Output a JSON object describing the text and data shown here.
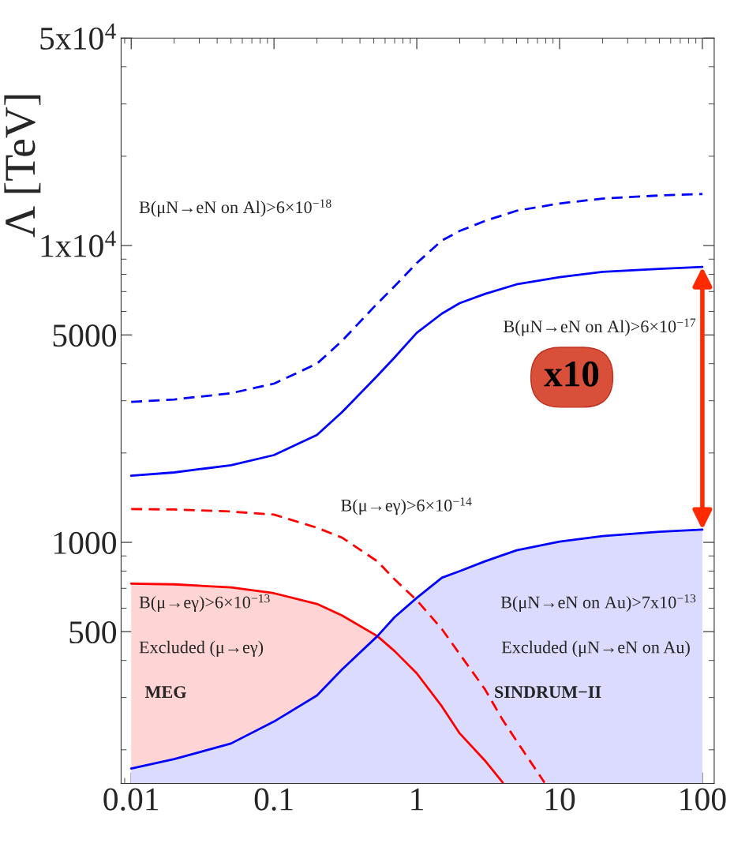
{
  "chart_data": {
    "type": "line",
    "ylabel": "Λ [TeV]",
    "log": "xy",
    "grid": false,
    "legend": false,
    "xlim": [
      0.0085,
      121
    ],
    "xticks": [
      0.01,
      0.1,
      1,
      10,
      100
    ],
    "ylim": [
      154,
      50000
    ],
    "yticks": [
      {
        "value": 500,
        "label": "500"
      },
      {
        "value": 1000,
        "label": "1000"
      },
      {
        "value": 5000,
        "label": "5000"
      },
      {
        "value": 10000,
        "label": "1x10$^{4}$"
      },
      {
        "value": 50000,
        "label": "5x10$^{4}$"
      }
    ],
    "series": [
      {
        "type": "area",
        "color": "#ff0000",
        "line_style": "solid",
        "x": [
          0.01,
          0.02,
          0.05,
          0.1,
          0.2,
          0.3,
          0.53,
          0.7,
          1,
          1.5,
          2,
          3,
          4.0
        ],
        "values": [
          726,
          722,
          705,
          674,
          620,
          567,
          483,
          430,
          362,
          280,
          227,
          184,
          155
        ]
      },
      {
        "type": "area",
        "color": "#0000ff",
        "line_style": "solid",
        "x": [
          0.01,
          0.02,
          0.05,
          0.1,
          0.2,
          0.3,
          0.53,
          0.7,
          1,
          1.5,
          2,
          3,
          5,
          10,
          20,
          50,
          100
        ],
        "values": [
          173,
          186,
          210,
          249,
          305,
          373,
          483,
          560,
          650,
          760,
          800,
          863,
          940,
          1006,
          1050,
          1085,
          1104
        ]
      },
      {
        "color": "#ff0000",
        "line_style": "dashed",
        "x": [
          0.01,
          0.02,
          0.05,
          0.1,
          0.2,
          0.3,
          0.53,
          0.7,
          1,
          1.5,
          2,
          3,
          4,
          5.5,
          7.85
        ],
        "values": [
          1295,
          1290,
          1270,
          1240,
          1120,
          1037,
          863,
          750,
          638,
          510,
          420,
          320,
          252,
          200,
          155
        ]
      },
      {
        "color": "#0000ff",
        "line_style": "solid",
        "x": [
          0.01,
          0.02,
          0.05,
          0.1,
          0.2,
          0.3,
          0.53,
          0.7,
          1,
          1.5,
          2,
          3,
          5,
          10,
          20,
          50,
          100
        ],
        "values": [
          1678,
          1720,
          1820,
          1968,
          2300,
          2747,
          3642,
          4200,
          5080,
          5900,
          6400,
          6870,
          7400,
          7820,
          8150,
          8350,
          8470
        ]
      },
      {
        "color": "#0000ff",
        "line_style": "dashed",
        "x": [
          0.01,
          0.02,
          0.05,
          0.1,
          0.2,
          0.3,
          0.5,
          0.7,
          1,
          1.5,
          2,
          3,
          5,
          10,
          20,
          50,
          100
        ],
        "values": [
          2973,
          3030,
          3180,
          3426,
          4000,
          4775,
          6200,
          7300,
          8730,
          10400,
          11200,
          12100,
          13100,
          13860,
          14400,
          14750,
          14920
        ]
      }
    ],
    "annotations": [
      "B(μN→eN on Al)>6×10$^{−18}$",
      "B(μN→eN on Al)>6×10$^{−17}$",
      "B(μ→eγ)>6×10$^{−14}$",
      "B(μ→eγ)>6×10$^{−13}$",
      "Excluded (μ→eγ)",
      "MEG",
      "B(μN→eN on Au)>7x10$^{−13}$",
      "Excluded (μN→eN on Au)",
      "SINDRUM−II",
      "x10"
    ]
  }
}
